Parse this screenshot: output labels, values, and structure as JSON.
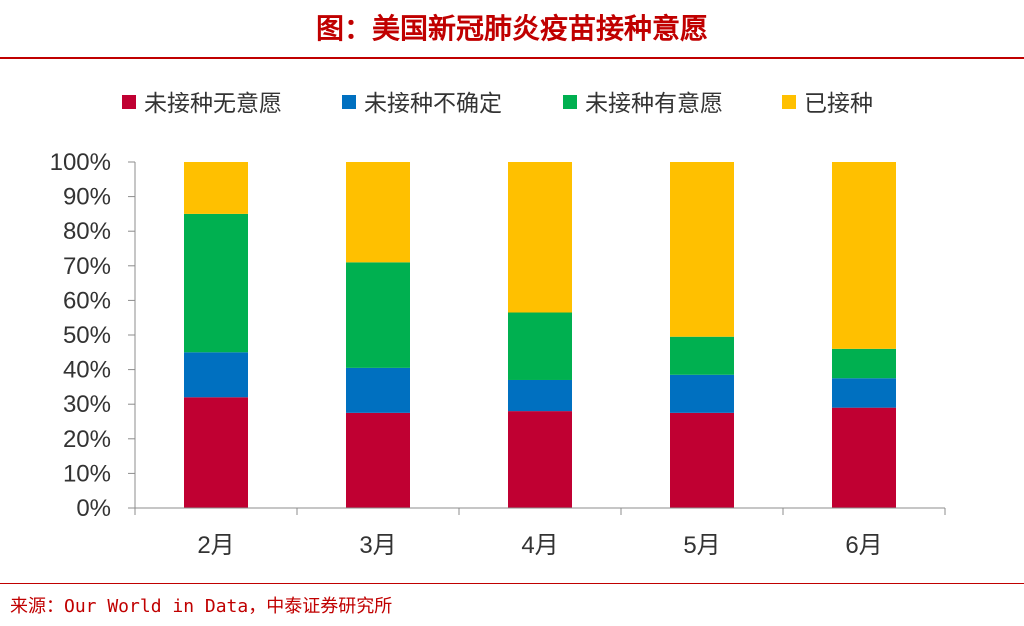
{
  "title": "图：美国新冠肺炎疫苗接种意愿",
  "source": "来源：Our World in Data，中泰证券研究所",
  "chart_data": {
    "type": "bar",
    "stacked": true,
    "categories": [
      "2月",
      "3月",
      "4月",
      "5月",
      "6月"
    ],
    "series": [
      {
        "name": "未接种无意愿",
        "color": "#c00032",
        "values": [
          32,
          27.5,
          28,
          27.5,
          29
        ]
      },
      {
        "name": "未接种不确定",
        "color": "#0070c0",
        "values": [
          13,
          13,
          9,
          11,
          8.5
        ]
      },
      {
        "name": "未接种有意愿",
        "color": "#00b050",
        "values": [
          40,
          30.5,
          19.5,
          11,
          8.5
        ]
      },
      {
        "name": "已接种",
        "color": "#ffc000",
        "values": [
          15,
          29,
          43.5,
          50.5,
          54
        ]
      }
    ],
    "ylim": [
      0,
      100
    ],
    "yticks": [
      "0%",
      "10%",
      "20%",
      "30%",
      "40%",
      "50%",
      "60%",
      "70%",
      "80%",
      "90%",
      "100%"
    ],
    "legend_position": "top",
    "grid": false
  }
}
